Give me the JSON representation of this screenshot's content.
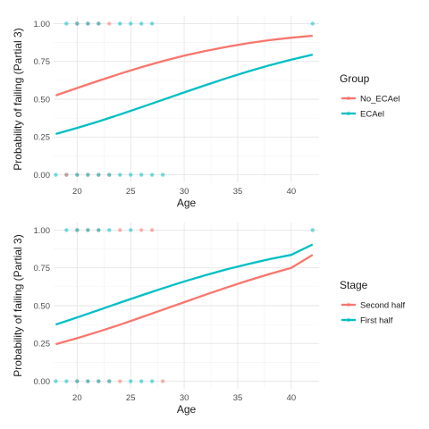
{
  "chart_data": [
    {
      "type": "line",
      "xlabel": "Age",
      "ylabel": "Probability of failing (Partial 3)",
      "xlim": [
        17.8,
        42.6
      ],
      "ylim": [
        -0.05,
        1.05
      ],
      "xticks": [
        20,
        25,
        30,
        35,
        40
      ],
      "yticks": [
        0.0,
        0.25,
        0.5,
        0.75,
        1.0
      ],
      "ytick_labels": [
        "0.00",
        "0.25",
        "0.50",
        "0.75",
        "1.00"
      ],
      "grid": true,
      "legend": {
        "title": "Group",
        "position": "right"
      },
      "series": [
        {
          "name": "No_ECAel",
          "color": "#F8766D",
          "x": [
            18,
            20,
            22,
            24,
            26,
            28,
            30,
            32,
            34,
            36,
            38,
            40,
            42
          ],
          "y": [
            0.525,
            0.574,
            0.622,
            0.668,
            0.712,
            0.752,
            0.788,
            0.819,
            0.847,
            0.871,
            0.891,
            0.907,
            0.92
          ]
        },
        {
          "name": "ECAel",
          "color": "#00BFC4",
          "x": [
            18,
            20,
            22,
            24,
            26,
            28,
            30,
            32,
            34,
            36,
            38,
            40,
            42
          ],
          "y": [
            0.27,
            0.31,
            0.353,
            0.399,
            0.447,
            0.496,
            0.545,
            0.593,
            0.64,
            0.684,
            0.725,
            0.762,
            0.795
          ]
        }
      ],
      "points": [
        {
          "x": 18,
          "y": 0,
          "series": 1
        },
        {
          "x": 19,
          "y": 0,
          "series": 1
        },
        {
          "x": 19,
          "y": 0,
          "series": 0
        },
        {
          "x": 20,
          "y": 0,
          "series": 0
        },
        {
          "x": 20,
          "y": 0,
          "series": 1
        },
        {
          "x": 21,
          "y": 0,
          "series": 0
        },
        {
          "x": 21,
          "y": 0,
          "series": 1
        },
        {
          "x": 22,
          "y": 0,
          "series": 0
        },
        {
          "x": 22,
          "y": 0,
          "series": 1
        },
        {
          "x": 23,
          "y": 0,
          "series": 0
        },
        {
          "x": 23,
          "y": 0,
          "series": 1
        },
        {
          "x": 24,
          "y": 0,
          "series": 1
        },
        {
          "x": 25,
          "y": 0,
          "series": 1
        },
        {
          "x": 26,
          "y": 0,
          "series": 1
        },
        {
          "x": 27,
          "y": 0,
          "series": 1
        },
        {
          "x": 28,
          "y": 0,
          "series": 1
        },
        {
          "x": 19,
          "y": 1,
          "series": 1
        },
        {
          "x": 20,
          "y": 1,
          "series": 0
        },
        {
          "x": 20,
          "y": 1,
          "series": 1
        },
        {
          "x": 21,
          "y": 1,
          "series": 0
        },
        {
          "x": 21,
          "y": 1,
          "series": 1
        },
        {
          "x": 22,
          "y": 1,
          "series": 0
        },
        {
          "x": 22,
          "y": 1,
          "series": 1
        },
        {
          "x": 23,
          "y": 1,
          "series": 0
        },
        {
          "x": 24,
          "y": 1,
          "series": 1
        },
        {
          "x": 25,
          "y": 1,
          "series": 1
        },
        {
          "x": 26,
          "y": 1,
          "series": 1
        },
        {
          "x": 27,
          "y": 1,
          "series": 1
        },
        {
          "x": 42,
          "y": 1,
          "series": 1
        }
      ]
    },
    {
      "type": "line",
      "xlabel": "Age",
      "ylabel": "Probability of failing (Partial 3)",
      "xlim": [
        17.8,
        42.6
      ],
      "ylim": [
        -0.05,
        1.05
      ],
      "xticks": [
        20,
        25,
        30,
        35,
        40
      ],
      "yticks": [
        0.0,
        0.25,
        0.5,
        0.75,
        1.0
      ],
      "ytick_labels": [
        "0.00",
        "0.25",
        "0.50",
        "0.75",
        "1.00"
      ],
      "grid": true,
      "legend": {
        "title": "Stage",
        "position": "right"
      },
      "series": [
        {
          "name": "Second half",
          "color": "#F8766D",
          "x": [
            18,
            20,
            22,
            24,
            26,
            28,
            30,
            32,
            34,
            36,
            38,
            40,
            42
          ],
          "y": [
            0.245,
            0.285,
            0.328,
            0.374,
            0.423,
            0.473,
            0.523,
            0.573,
            0.621,
            0.667,
            0.71,
            0.75,
            0.836
          ]
        },
        {
          "name": "First half",
          "color": "#00BFC4",
          "x": [
            18,
            20,
            22,
            24,
            26,
            28,
            30,
            32,
            34,
            36,
            38,
            40,
            42
          ],
          "y": [
            0.375,
            0.422,
            0.471,
            0.52,
            0.568,
            0.615,
            0.66,
            0.702,
            0.741,
            0.776,
            0.808,
            0.836,
            0.905
          ]
        }
      ],
      "points": [
        {
          "x": 18,
          "y": 0,
          "series": 1
        },
        {
          "x": 19,
          "y": 0,
          "series": 1
        },
        {
          "x": 20,
          "y": 0,
          "series": 0
        },
        {
          "x": 20,
          "y": 0,
          "series": 1
        },
        {
          "x": 21,
          "y": 0,
          "series": 0
        },
        {
          "x": 21,
          "y": 0,
          "series": 1
        },
        {
          "x": 22,
          "y": 0,
          "series": 0
        },
        {
          "x": 22,
          "y": 0,
          "series": 1
        },
        {
          "x": 23,
          "y": 0,
          "series": 0
        },
        {
          "x": 23,
          "y": 0,
          "series": 1
        },
        {
          "x": 24,
          "y": 0,
          "series": 0
        },
        {
          "x": 25,
          "y": 0,
          "series": 1
        },
        {
          "x": 26,
          "y": 0,
          "series": 1
        },
        {
          "x": 27,
          "y": 0,
          "series": 1
        },
        {
          "x": 28,
          "y": 0,
          "series": 0
        },
        {
          "x": 19,
          "y": 1,
          "series": 1
        },
        {
          "x": 20,
          "y": 1,
          "series": 0
        },
        {
          "x": 20,
          "y": 1,
          "series": 1
        },
        {
          "x": 21,
          "y": 1,
          "series": 0
        },
        {
          "x": 21,
          "y": 1,
          "series": 1
        },
        {
          "x": 22,
          "y": 1,
          "series": 0
        },
        {
          "x": 22,
          "y": 1,
          "series": 1
        },
        {
          "x": 23,
          "y": 1,
          "series": 1
        },
        {
          "x": 24,
          "y": 1,
          "series": 0
        },
        {
          "x": 25,
          "y": 1,
          "series": 1
        },
        {
          "x": 26,
          "y": 1,
          "series": 0
        },
        {
          "x": 27,
          "y": 1,
          "series": 0
        },
        {
          "x": 42,
          "y": 1,
          "series": 1
        }
      ]
    }
  ]
}
